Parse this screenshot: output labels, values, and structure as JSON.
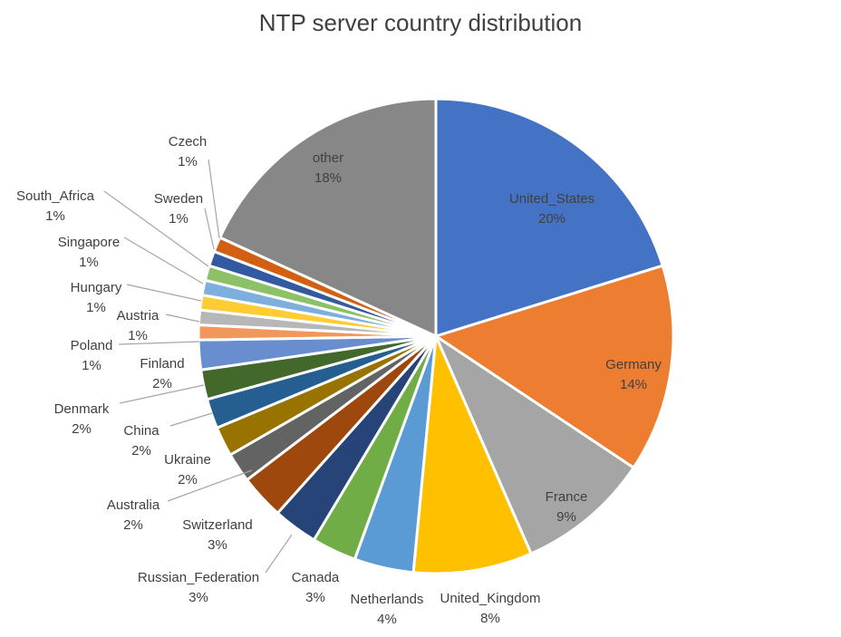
{
  "chart_data": {
    "type": "pie",
    "title": "NTP server country distribution",
    "slices": [
      {
        "label": "United_States",
        "value": 20,
        "pct_label": "20%",
        "color": "#4472C4"
      },
      {
        "label": "Germany",
        "value": 14,
        "pct_label": "14%",
        "color": "#ED7D31"
      },
      {
        "label": "France",
        "value": 9,
        "pct_label": "9%",
        "color": "#A5A5A5"
      },
      {
        "label": "United_Kingdom",
        "value": 8,
        "pct_label": "8%",
        "color": "#FFC000"
      },
      {
        "label": "Netherlands",
        "value": 4,
        "pct_label": "4%",
        "color": "#5B9BD5"
      },
      {
        "label": "Canada",
        "value": 3,
        "pct_label": "3%",
        "color": "#70AD47"
      },
      {
        "label": "Russian_Federation",
        "value": 3,
        "pct_label": "3%",
        "color": "#264478"
      },
      {
        "label": "Switzerland",
        "value": 3,
        "pct_label": "3%",
        "color": "#9E480E"
      },
      {
        "label": "Australia",
        "value": 2,
        "pct_label": "2%",
        "color": "#636363"
      },
      {
        "label": "Ukraine",
        "value": 2,
        "pct_label": "2%",
        "color": "#997300"
      },
      {
        "label": "China",
        "value": 2,
        "pct_label": "2%",
        "color": "#255E91"
      },
      {
        "label": "Denmark",
        "value": 2,
        "pct_label": "2%",
        "color": "#43682B"
      },
      {
        "label": "Finland",
        "value": 2,
        "pct_label": "2%",
        "color": "#698ED0"
      },
      {
        "label": "Poland",
        "value": 1,
        "pct_label": "1%",
        "color": "#F1975A"
      },
      {
        "label": "Austria",
        "value": 1,
        "pct_label": "1%",
        "color": "#B7B7B7"
      },
      {
        "label": "Hungary",
        "value": 1,
        "pct_label": "1%",
        "color": "#FFCD33"
      },
      {
        "label": "Singapore",
        "value": 1,
        "pct_label": "1%",
        "color": "#7CAFDD"
      },
      {
        "label": "South_Africa",
        "value": 1,
        "pct_label": "1%",
        "color": "#8CC168"
      },
      {
        "label": "Sweden",
        "value": 1,
        "pct_label": "1%",
        "color": "#335AA1"
      },
      {
        "label": "Czech",
        "value": 1,
        "pct_label": "1%",
        "color": "#D26012"
      },
      {
        "label": "other",
        "value": 18,
        "pct_label": "18%",
        "color": "#878787"
      }
    ],
    "legend": "none",
    "data_labels": "category and percentage"
  }
}
